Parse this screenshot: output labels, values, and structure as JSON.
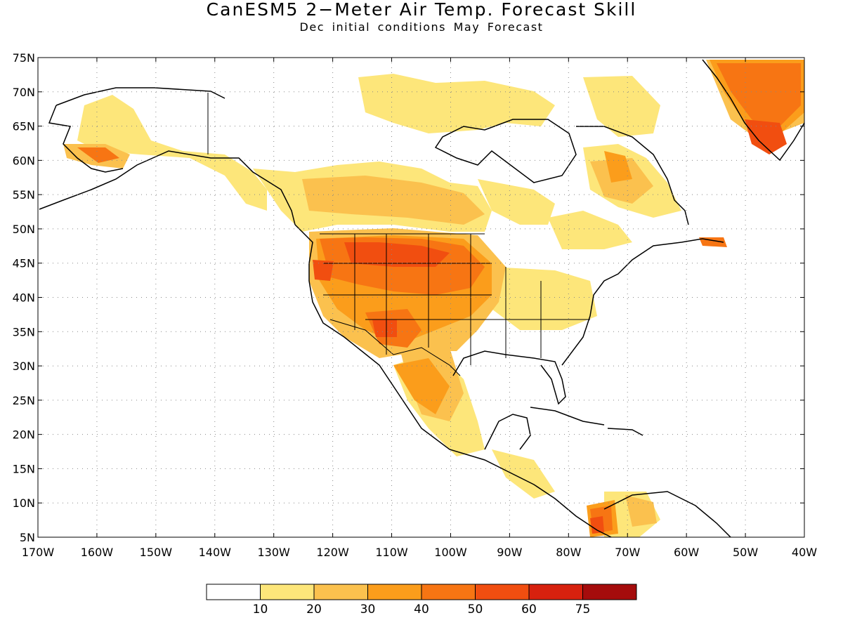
{
  "title": "CanESM5 2−Meter Air Temp. Forecast Skill",
  "subtitle": "Dec initial conditions   May Forecast",
  "map_data": {
    "lon_range": [
      -170,
      -40
    ],
    "lat_range": [
      5,
      75
    ],
    "lat_ticks": [
      "5N",
      "10N",
      "15N",
      "20N",
      "25N",
      "30N",
      "35N",
      "40N",
      "45N",
      "50N",
      "55N",
      "60N",
      "65N",
      "70N",
      "75N"
    ],
    "lon_ticks": [
      "170W",
      "160W",
      "150W",
      "140W",
      "130W",
      "120W",
      "110W",
      "100W",
      "90W",
      "80W",
      "70W",
      "60W",
      "50W",
      "40W"
    ],
    "grid": "dotted"
  },
  "colorbar": {
    "colors": [
      "#ffffff",
      "#fde67a",
      "#fbc14e",
      "#fb9d1b",
      "#f77513",
      "#f14e10",
      "#d7210e",
      "#a50c0c"
    ],
    "labels": [
      "10",
      "20",
      "30",
      "40",
      "50",
      "60",
      "75"
    ]
  }
}
